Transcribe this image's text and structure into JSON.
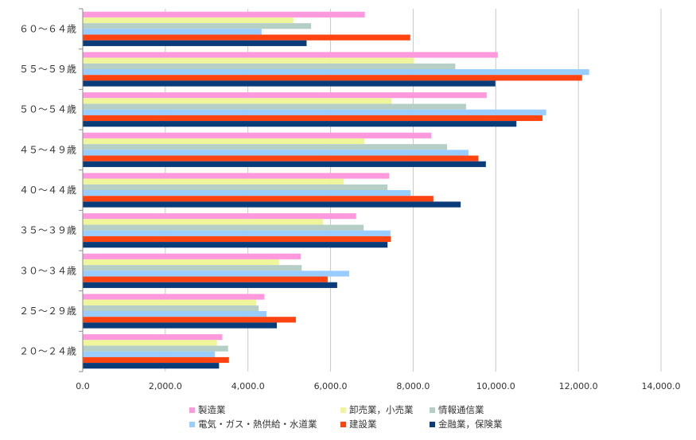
{
  "chart_data": {
    "type": "bar",
    "orientation": "horizontal",
    "categories": [
      "２０～２４歳",
      "２５～２９歳",
      "３０～３４歳",
      "３５～３９歳",
      "４０～４４歳",
      "４５～４９歳",
      "５０～５４歳",
      "５５～５９歳",
      "６０～６４歳"
    ],
    "series": [
      {
        "name": "製造業",
        "color": "#ff99dd",
        "values": [
          3380,
          4400,
          5280,
          6620,
          7420,
          8440,
          9780,
          10050,
          6830
        ]
      },
      {
        "name": "卸売業，小売業",
        "color": "#eef59a",
        "values": [
          3250,
          4200,
          4750,
          5820,
          6320,
          6820,
          7480,
          8020,
          5100
        ]
      },
      {
        "name": "情報通信業",
        "color": "#b6cfc6",
        "values": [
          3520,
          4260,
          5300,
          6800,
          7380,
          8820,
          9280,
          9020,
          5530
        ]
      },
      {
        "name": "電気・ガス・熱供給・水道業",
        "color": "#99ccff",
        "values": [
          3200,
          4450,
          6450,
          7450,
          7940,
          9340,
          11220,
          12260,
          4330
        ]
      },
      {
        "name": "建設業",
        "color": "#ff4411",
        "values": [
          3540,
          5160,
          5930,
          7460,
          8490,
          9580,
          11130,
          12090,
          7930
        ]
      },
      {
        "name": "金融業，保険業",
        "color": "#0a3c7a",
        "values": [
          3300,
          4700,
          6160,
          7380,
          9150,
          9760,
          10500,
          9990,
          5420
        ]
      }
    ],
    "xlim": [
      0,
      14000
    ],
    "x_ticks": [
      0,
      2000,
      4000,
      6000,
      8000,
      10000,
      12000,
      14000
    ],
    "x_tick_labels": [
      "0.0",
      "2,000.0",
      "4,000.0",
      "6,000.0",
      "8,000.0",
      "10,000.0",
      "12,000.0",
      "14,000.0"
    ],
    "grid": "vertical",
    "legend_position": "bottom",
    "title": "",
    "xlabel": "",
    "ylabel": ""
  }
}
